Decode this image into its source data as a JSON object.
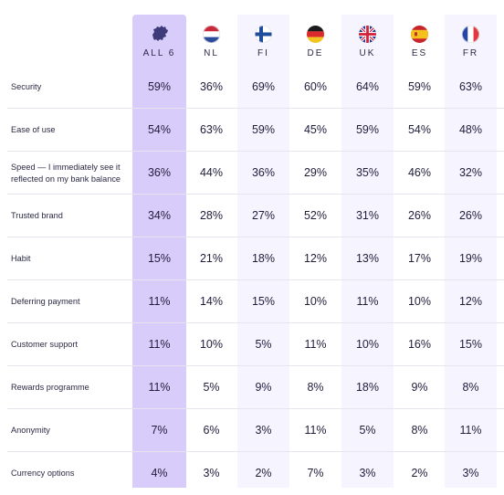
{
  "chart_data": {
    "type": "table",
    "columns": [
      {
        "code": "ALL 6",
        "icon": "europe-map-icon"
      },
      {
        "code": "NL",
        "icon": "netherlands-flag-icon"
      },
      {
        "code": "FI",
        "icon": "finland-flag-icon"
      },
      {
        "code": "DE",
        "icon": "germany-flag-icon"
      },
      {
        "code": "UK",
        "icon": "uk-flag-icon"
      },
      {
        "code": "ES",
        "icon": "spain-flag-icon"
      },
      {
        "code": "FR",
        "icon": "france-flag-icon"
      }
    ],
    "rows": [
      {
        "label": "Security",
        "values": [
          "59%",
          "36%",
          "69%",
          "60%",
          "64%",
          "59%",
          "63%"
        ]
      },
      {
        "label": "Ease of use",
        "values": [
          "54%",
          "63%",
          "59%",
          "45%",
          "59%",
          "54%",
          "48%"
        ]
      },
      {
        "label": "Speed — I immediately see it reflected on my bank balance",
        "values": [
          "36%",
          "44%",
          "36%",
          "29%",
          "35%",
          "46%",
          "32%"
        ]
      },
      {
        "label": "Trusted brand",
        "values": [
          "34%",
          "28%",
          "27%",
          "52%",
          "31%",
          "26%",
          "26%"
        ]
      },
      {
        "label": "Habit",
        "values": [
          "15%",
          "21%",
          "18%",
          "12%",
          "13%",
          "17%",
          "19%"
        ]
      },
      {
        "label": "Deferring payment",
        "values": [
          "11%",
          "14%",
          "15%",
          "10%",
          "11%",
          "10%",
          "12%"
        ]
      },
      {
        "label": "Customer support",
        "values": [
          "11%",
          "10%",
          "5%",
          "11%",
          "10%",
          "16%",
          "15%"
        ]
      },
      {
        "label": "Rewards programme",
        "values": [
          "11%",
          "5%",
          "9%",
          "8%",
          "18%",
          "9%",
          "8%"
        ]
      },
      {
        "label": "Anonymity",
        "values": [
          "7%",
          "6%",
          "3%",
          "11%",
          "5%",
          "8%",
          "11%"
        ]
      },
      {
        "label": "Currency options",
        "values": [
          "4%",
          "3%",
          "2%",
          "7%",
          "3%",
          "2%",
          "3%"
        ]
      }
    ],
    "colors": {
      "highlight": "#d8ccfb",
      "alt_band": "#f6f4fe",
      "text": "#1f1d3a"
    }
  }
}
